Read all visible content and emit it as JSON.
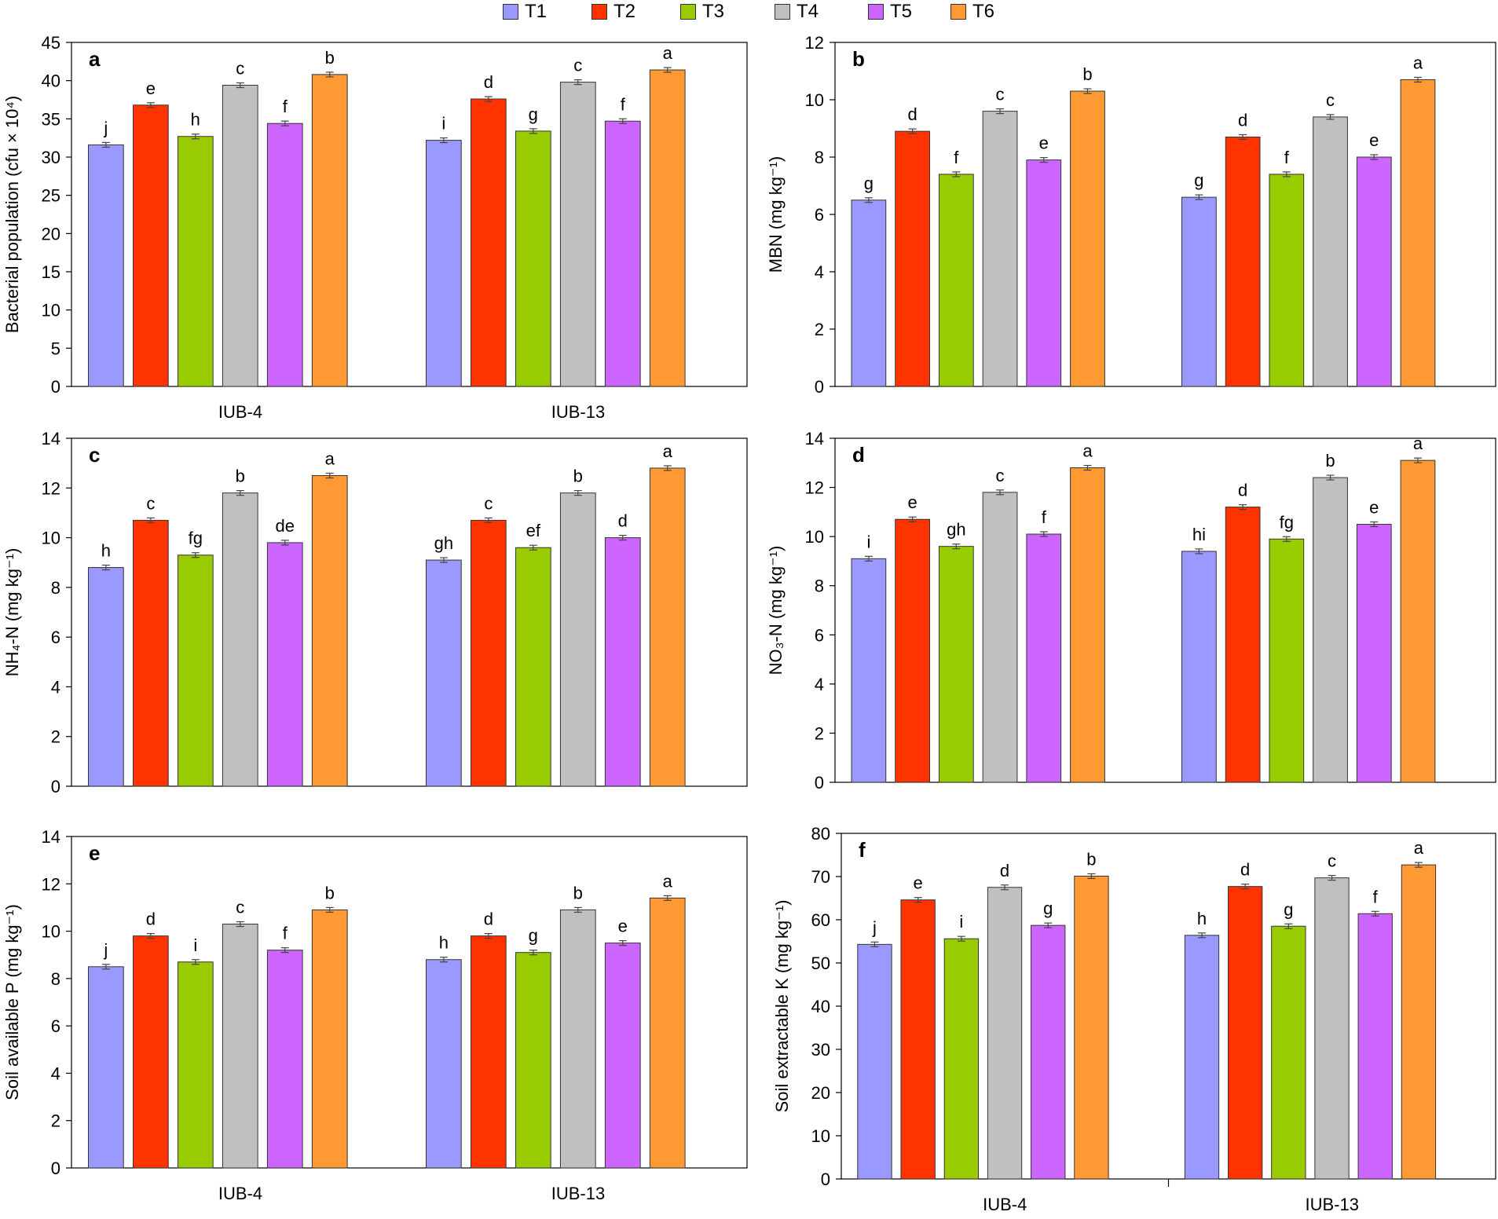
{
  "legend": {
    "items": [
      {
        "label": "T1",
        "color": "#9999FF"
      },
      {
        "label": "T2",
        "color": "#FF3300"
      },
      {
        "label": "T3",
        "color": "#99CC00"
      },
      {
        "label": "T4",
        "color": "#C0C0C0"
      },
      {
        "label": "T5",
        "color": "#CC66FF"
      },
      {
        "label": "T6",
        "color": "#FF9933"
      }
    ]
  },
  "chart_data": [
    {
      "type": "bar",
      "panel": "a",
      "ylabel": "Bacterial population (cfu × 10⁴)",
      "ylim": [
        0,
        45
      ],
      "yticks": [
        0,
        5,
        10,
        15,
        20,
        25,
        30,
        35,
        40,
        45
      ],
      "categories": [
        "IUB-4",
        "IUB-13"
      ],
      "show_xlabels": true,
      "series": [
        {
          "name": "T1",
          "values": [
            31.6,
            32.2
          ],
          "letters": [
            "j",
            "i"
          ]
        },
        {
          "name": "T2",
          "values": [
            36.8,
            37.6
          ],
          "letters": [
            "e",
            "d"
          ]
        },
        {
          "name": "T3",
          "values": [
            32.7,
            33.4
          ],
          "letters": [
            "h",
            "g"
          ]
        },
        {
          "name": "T4",
          "values": [
            39.4,
            39.8
          ],
          "letters": [
            "c",
            "c"
          ]
        },
        {
          "name": "T5",
          "values": [
            34.4,
            34.7
          ],
          "letters": [
            "f",
            "f"
          ]
        },
        {
          "name": "T6",
          "values": [
            40.8,
            41.4
          ],
          "letters": [
            "b",
            "a"
          ]
        }
      ]
    },
    {
      "type": "bar",
      "panel": "b",
      "ylabel": "MBN (mg kg⁻¹)",
      "ylim": [
        0,
        12
      ],
      "yticks": [
        0,
        2,
        4,
        6,
        8,
        10,
        12
      ],
      "categories": [
        "IUB-4",
        "IUB-13"
      ],
      "show_xlabels": false,
      "series": [
        {
          "name": "T1",
          "values": [
            6.5,
            6.6
          ],
          "letters": [
            "g",
            "g"
          ]
        },
        {
          "name": "T2",
          "values": [
            8.9,
            8.7
          ],
          "letters": [
            "d",
            "d"
          ]
        },
        {
          "name": "T3",
          "values": [
            7.4,
            7.4
          ],
          "letters": [
            "f",
            "f"
          ]
        },
        {
          "name": "T4",
          "values": [
            9.6,
            9.4
          ],
          "letters": [
            "c",
            "c"
          ]
        },
        {
          "name": "T5",
          "values": [
            7.9,
            8.0
          ],
          "letters": [
            "e",
            "e"
          ]
        },
        {
          "name": "T6",
          "values": [
            10.3,
            10.7
          ],
          "letters": [
            "b",
            "a"
          ]
        }
      ]
    },
    {
      "type": "bar",
      "panel": "c",
      "ylabel": "NH₄-N (mg kg⁻¹)",
      "ylim": [
        0,
        14
      ],
      "yticks": [
        0,
        2,
        4,
        6,
        8,
        10,
        12,
        14
      ],
      "categories": [
        "IUB-4",
        "IUB-13"
      ],
      "show_xlabels": false,
      "series": [
        {
          "name": "T1",
          "values": [
            8.8,
            9.1
          ],
          "letters": [
            "h",
            "gh"
          ]
        },
        {
          "name": "T2",
          "values": [
            10.7,
            10.7
          ],
          "letters": [
            "c",
            "c"
          ]
        },
        {
          "name": "T3",
          "values": [
            9.3,
            9.6
          ],
          "letters": [
            "fg",
            "ef"
          ]
        },
        {
          "name": "T4",
          "values": [
            11.8,
            11.8
          ],
          "letters": [
            "b",
            "b"
          ]
        },
        {
          "name": "T5",
          "values": [
            9.8,
            10.0
          ],
          "letters": [
            "de",
            "d"
          ]
        },
        {
          "name": "T6",
          "values": [
            12.5,
            12.8
          ],
          "letters": [
            "a",
            "a"
          ]
        }
      ]
    },
    {
      "type": "bar",
      "panel": "d",
      "ylabel": "NO₃-N (mg kg⁻¹)",
      "ylim": [
        0,
        14
      ],
      "yticks": [
        0,
        2,
        4,
        6,
        8,
        10,
        12,
        14
      ],
      "categories": [
        "IUB-4",
        "IUB-13"
      ],
      "show_xlabels": false,
      "series": [
        {
          "name": "T1",
          "values": [
            9.1,
            9.4
          ],
          "letters": [
            "i",
            "hi"
          ]
        },
        {
          "name": "T2",
          "values": [
            10.7,
            11.2
          ],
          "letters": [
            "e",
            "d"
          ]
        },
        {
          "name": "T3",
          "values": [
            9.6,
            9.9
          ],
          "letters": [
            "gh",
            "fg"
          ]
        },
        {
          "name": "T4",
          "values": [
            11.8,
            12.4
          ],
          "letters": [
            "c",
            "b"
          ]
        },
        {
          "name": "T5",
          "values": [
            10.1,
            10.5
          ],
          "letters": [
            "f",
            "e"
          ]
        },
        {
          "name": "T6",
          "values": [
            12.8,
            13.1
          ],
          "letters": [
            "a",
            "a"
          ]
        }
      ]
    },
    {
      "type": "bar",
      "panel": "e",
      "ylabel": "Soil available P (mg kg⁻¹)",
      "ylim": [
        0,
        14
      ],
      "yticks": [
        0,
        2,
        4,
        6,
        8,
        10,
        12,
        14
      ],
      "categories": [
        "IUB-4",
        "IUB-13"
      ],
      "show_xlabels": true,
      "series": [
        {
          "name": "T1",
          "values": [
            8.5,
            8.8
          ],
          "letters": [
            "j",
            "h"
          ]
        },
        {
          "name": "T2",
          "values": [
            9.8,
            9.8
          ],
          "letters": [
            "d",
            "d"
          ]
        },
        {
          "name": "T3",
          "values": [
            8.7,
            9.1
          ],
          "letters": [
            "i",
            "g"
          ]
        },
        {
          "name": "T4",
          "values": [
            10.3,
            10.9
          ],
          "letters": [
            "c",
            "b"
          ]
        },
        {
          "name": "T5",
          "values": [
            9.2,
            9.5
          ],
          "letters": [
            "f",
            "e"
          ]
        },
        {
          "name": "T6",
          "values": [
            10.9,
            11.4
          ],
          "letters": [
            "b",
            "a"
          ]
        }
      ]
    },
    {
      "type": "bar",
      "panel": "f",
      "ylabel": "Soil extractable K (mg kg⁻¹)",
      "ylim": [
        0,
        80
      ],
      "yticks": [
        0,
        10,
        20,
        30,
        40,
        50,
        60,
        70,
        80
      ],
      "categories": [
        "IUB-4",
        "IUB-13"
      ],
      "show_xlabels": true,
      "series": [
        {
          "name": "T1",
          "values": [
            54.3,
            56.4
          ],
          "letters": [
            "j",
            "h"
          ]
        },
        {
          "name": "T2",
          "values": [
            64.6,
            67.7
          ],
          "letters": [
            "e",
            "d"
          ]
        },
        {
          "name": "T3",
          "values": [
            55.6,
            58.5
          ],
          "letters": [
            "i",
            "g"
          ]
        },
        {
          "name": "T4",
          "values": [
            67.5,
            69.7
          ],
          "letters": [
            "d",
            "c"
          ]
        },
        {
          "name": "T5",
          "values": [
            58.7,
            61.4
          ],
          "letters": [
            "g",
            "f"
          ]
        },
        {
          "name": "T6",
          "values": [
            70.1,
            72.7
          ],
          "letters": [
            "b",
            "a"
          ]
        }
      ]
    }
  ]
}
